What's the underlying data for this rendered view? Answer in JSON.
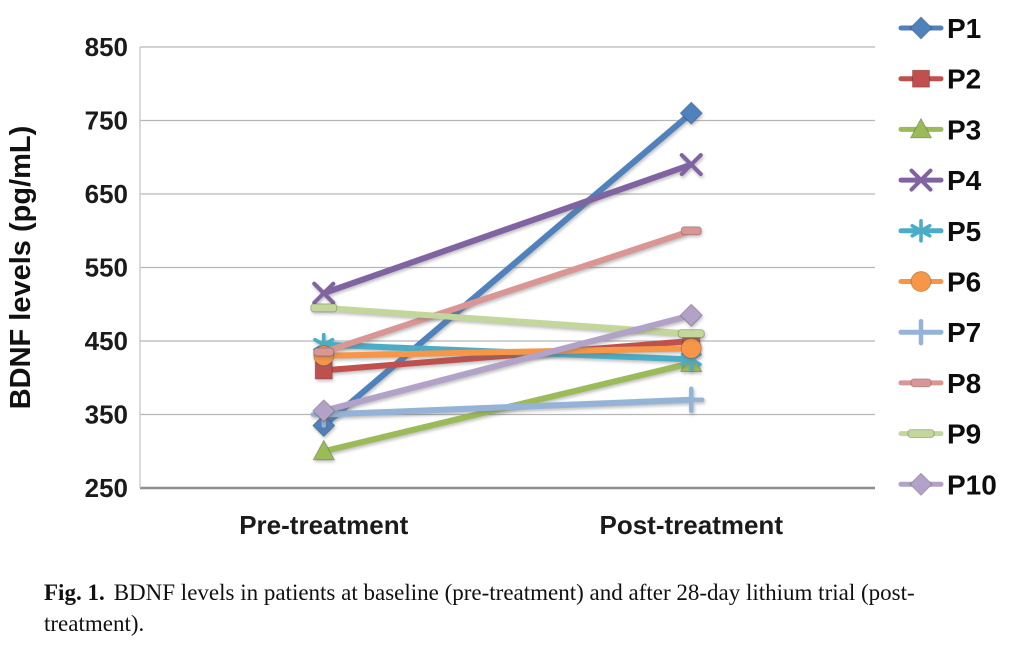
{
  "figure": {
    "caption_label": "Fig. 1.",
    "caption_text": "BDNF levels in patients at baseline (pre-treatment) and after 28-day lithium trial (post-treatment)."
  },
  "chart_data": {
    "type": "line",
    "title": "",
    "xlabel": "",
    "ylabel": "BDNF  levels (pg/mL)",
    "categories": [
      "Pre-treatment",
      "Post-treatment"
    ],
    "ylim": [
      250,
      850
    ],
    "yticks": [
      250,
      350,
      450,
      550,
      650,
      750,
      850
    ],
    "grid": true,
    "legend_position": "right",
    "axis_colors": {
      "gridline": "#b6b6b6",
      "axis_line": "#8f8f8f",
      "spine": "#c6c6c6"
    },
    "series": [
      {
        "name": "P1",
        "values": [
          335,
          760
        ],
        "color": "#4F81BD",
        "marker": "diamond"
      },
      {
        "name": "P2",
        "values": [
          410,
          450
        ],
        "color": "#C0504D",
        "marker": "square"
      },
      {
        "name": "P3",
        "values": [
          300,
          420
        ],
        "color": "#9BBB59",
        "marker": "triangle"
      },
      {
        "name": "P4",
        "values": [
          515,
          690
        ],
        "color": "#8064A2",
        "marker": "x"
      },
      {
        "name": "P5",
        "values": [
          445,
          425
        ],
        "color": "#4BACC6",
        "marker": "asterisk"
      },
      {
        "name": "P6",
        "values": [
          430,
          440
        ],
        "color": "#F79646",
        "marker": "circle"
      },
      {
        "name": "P7",
        "values": [
          350,
          370
        ],
        "color": "#95B3D7",
        "marker": "plus"
      },
      {
        "name": "P8",
        "values": [
          435,
          600
        ],
        "color": "#D99694",
        "marker": "dash"
      },
      {
        "name": "P9",
        "values": [
          495,
          460
        ],
        "color": "#C3D69B",
        "marker": "dash-long"
      },
      {
        "name": "P10",
        "values": [
          355,
          485
        ],
        "color": "#B2A2C7",
        "marker": "diamond"
      }
    ]
  }
}
